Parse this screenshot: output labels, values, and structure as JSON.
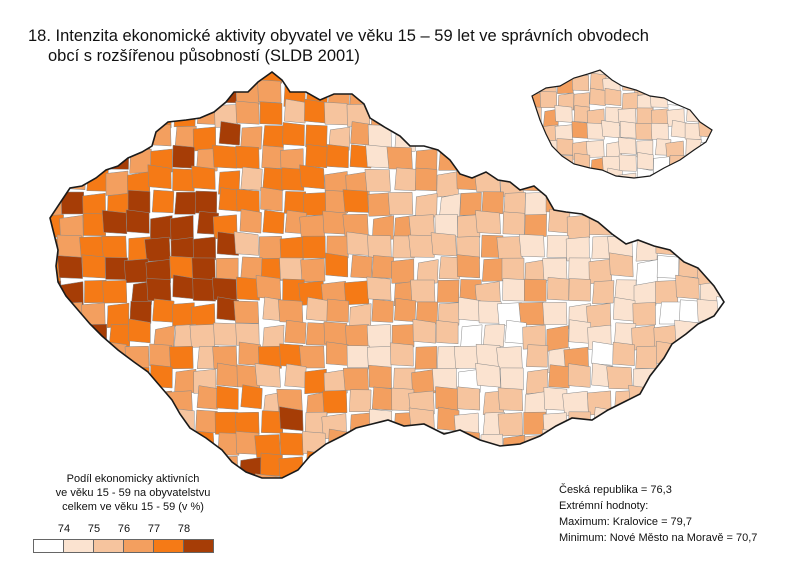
{
  "title": {
    "line1": "18. Intenzita ekonomické aktivity obyvatel ve věku 15 – 59 let ve správních obvodech",
    "line2": "obcí s rozšířenou působností (SLDB 2001)"
  },
  "legend": {
    "line1": "Podíl ekonomicky aktivních",
    "line2": "ve věku 15 - 59 na obyvatelstvu",
    "line3": "celkem ve věku 15 - 59 (v %)",
    "ticks": [
      "74",
      "75",
      "76",
      "77",
      "78"
    ],
    "colors": [
      "#ffffff",
      "#fbe3d0",
      "#f6c49e",
      "#f39f5f",
      "#f57a16",
      "#a63d06"
    ]
  },
  "stats": {
    "republic": "Česká republika = 76,3",
    "extremes_label": "Extrémní hodnoty:",
    "maximum": "Maximum: Kralovice = 79,7",
    "minimum": "Minimum:  Nové Město na Moravě = 70,7"
  },
  "colors": {
    "outline": "#1a1a1a",
    "district_line": "#8a8a8a"
  }
}
